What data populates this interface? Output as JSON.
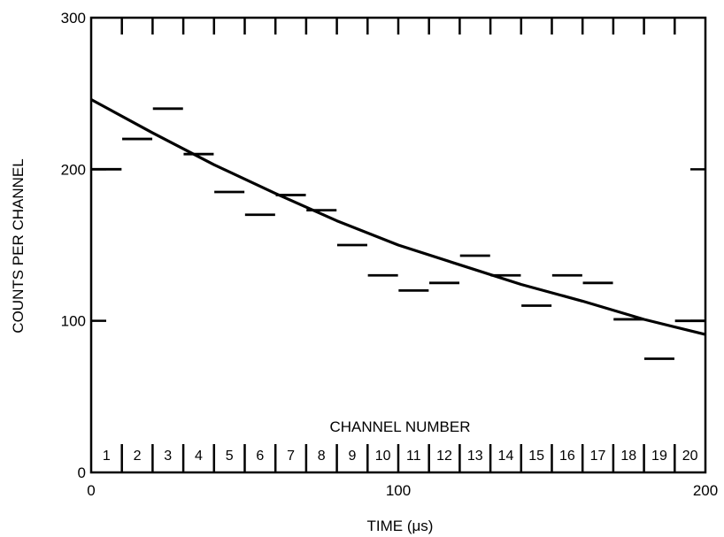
{
  "chart_data": {
    "type": "scatter",
    "title": "",
    "xlabel": "TIME  (μs)",
    "ylabel": "COUNTS PER CHANNEL",
    "secondary_xlabel": "CHANNEL NUMBER",
    "xlim": [
      0,
      200
    ],
    "ylim": [
      0,
      300
    ],
    "xticks": [
      0,
      100,
      200
    ],
    "yticks": [
      0,
      100,
      200,
      300
    ],
    "grid": false,
    "channel_width_us": 10,
    "channels": [
      1,
      2,
      3,
      4,
      5,
      6,
      7,
      8,
      9,
      10,
      11,
      12,
      13,
      14,
      15,
      16,
      17,
      18,
      19,
      20
    ],
    "series": [
      {
        "style": "horizontal-bar",
        "counts": [
          200,
          220,
          240,
          210,
          185,
          170,
          183,
          173,
          150,
          130,
          120,
          125,
          143,
          130,
          110,
          130,
          125,
          101,
          75,
          100
        ]
      },
      {
        "style": "line",
        "x": [
          0,
          20,
          40,
          60,
          80,
          100,
          120,
          140,
          160,
          180,
          200
        ],
        "y": [
          246,
          224,
          203,
          184,
          166,
          150,
          137,
          124,
          113,
          101,
          91
        ]
      }
    ],
    "colors": {
      "ink": "#000000",
      "background": "#ffffff"
    }
  }
}
